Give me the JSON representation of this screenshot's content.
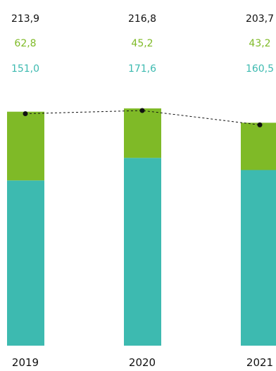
{
  "chart_data": {
    "type": "bar",
    "stacked": true,
    "categories": [
      "2019",
      "2020",
      "2021"
    ],
    "series": [
      {
        "values": [
          151.0,
          171.6,
          160.5
        ],
        "labels": [
          "151,0",
          "171,6",
          "160,5"
        ],
        "color": "#3dbab0"
      },
      {
        "values": [
          62.8,
          45.2,
          43.2
        ],
        "labels": [
          "62,8",
          "45,2",
          "43,2"
        ],
        "color": "#7fba27"
      }
    ],
    "totals": {
      "values": [
        213.9,
        216.8,
        203.7
      ],
      "labels": [
        "213,9",
        "216,8",
        "203,7"
      ],
      "line_style": "dashed",
      "line_color": "#111111"
    },
    "label_colors": {
      "total": "#111111",
      "series_2": "#7fba27",
      "series_1": "#3dbab0"
    },
    "ylim": [
      0,
      216.8
    ],
    "grid": false,
    "legend": "none",
    "title": "",
    "xlabel": "",
    "ylabel": ""
  }
}
